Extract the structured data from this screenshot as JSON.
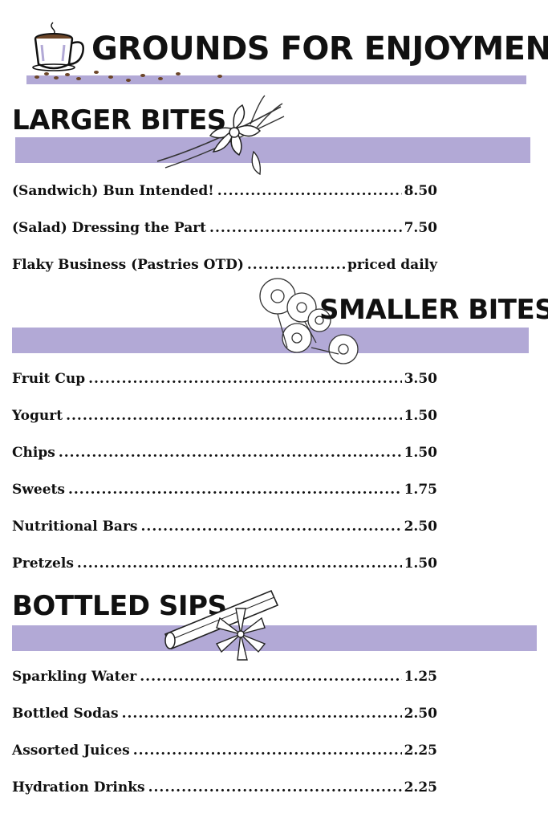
{
  "header": {
    "title": "GROUNDS FOR ENJOYMENT"
  },
  "colors": {
    "band": "#b2a9d6",
    "text": "#111111",
    "coffee": "#6b4528"
  },
  "sections": [
    {
      "title": "LARGER BITES",
      "items": [
        {
          "name": "(Sandwich) Bun Intended!",
          "price": "8.50"
        },
        {
          "name": "(Salad) Dressing the Part",
          "price": "7.50"
        },
        {
          "name": "Flaky Business (Pastries OTD)",
          "price": "priced daily"
        }
      ]
    },
    {
      "title": "SMALLER BITES",
      "items": [
        {
          "name": "Fruit Cup",
          "price": "3.50"
        },
        {
          "name": "Yogurt",
          "price": "1.50"
        },
        {
          "name": "Chips",
          "price": "1.50"
        },
        {
          "name": "Sweets",
          "price": "1.75"
        },
        {
          "name": "Nutritional Bars",
          "price": "2.50"
        },
        {
          "name": "Pretzels",
          "price": "1.50"
        }
      ]
    },
    {
      "title": "BOTTLED SIPS",
      "items": [
        {
          "name": "Sparkling Water",
          "price": "1.25"
        },
        {
          "name": "Bottled Sodas",
          "price": "2.50"
        },
        {
          "name": "Assorted Juices",
          "price": "2.25"
        },
        {
          "name": "Hydration Drinks",
          "price": "2.25"
        }
      ]
    }
  ],
  "icons": [
    "coffee-cup-icon",
    "coffee-beans-icon",
    "vanilla-flower-icon",
    "chamomile-flowers-icon",
    "cinnamon-star-anise-icon"
  ]
}
